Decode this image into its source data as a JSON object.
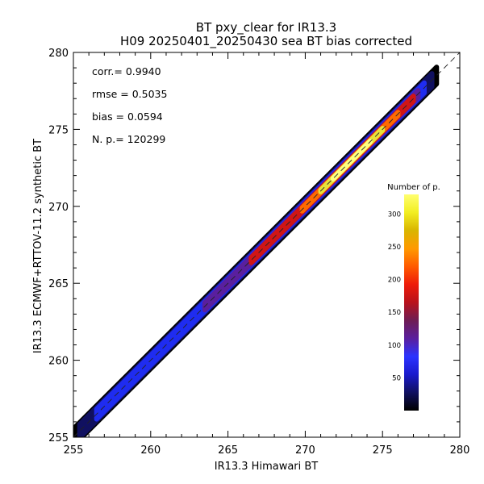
{
  "chart_data": {
    "type": "heatmap",
    "title": "BT pxy_clear for IR13.3",
    "subtitle": "H09 20250401_20250430 sea BT bias corrected",
    "xlabel": "IR13.3 Himawari BT",
    "ylabel": "IR13.3 ECMWF+RTTOV-11.2 synthetic BT",
    "xlim": [
      255,
      280
    ],
    "ylim": [
      255,
      280
    ],
    "x_ticks": [
      "255",
      "260",
      "265",
      "270",
      "275",
      "280"
    ],
    "y_ticks": [
      "255",
      "260",
      "265",
      "270",
      "275",
      "280"
    ],
    "reference_line": "y = x (dashed)",
    "stats": [
      {
        "label": "corr.=",
        "value": "0.9940"
      },
      {
        "label": "rmse =",
        "value": "0.5035"
      },
      {
        "label": "bias =",
        "value": "0.0594"
      },
      {
        "label": "N. p.=",
        "value": "120299"
      }
    ],
    "density_band": {
      "x_range": [
        255,
        278.5
      ],
      "outer_half_width_K": 0.55,
      "core_peak_x": 273,
      "max_density": 330
    },
    "colorbar": {
      "title": "Number of p.",
      "range": [
        0,
        330
      ],
      "ticks": [
        "50",
        "100",
        "150",
        "200",
        "250",
        "300"
      ],
      "colormap": [
        "#000000",
        "#101060",
        "#1a1acc",
        "#2b33ff",
        "#5a1f9e",
        "#6e1c54",
        "#b8121c",
        "#ee1c0a",
        "#ff5a00",
        "#ff9a00",
        "#d9b500",
        "#f2ee22",
        "#ffff70"
      ]
    },
    "grid": false,
    "legend_position": "right"
  }
}
